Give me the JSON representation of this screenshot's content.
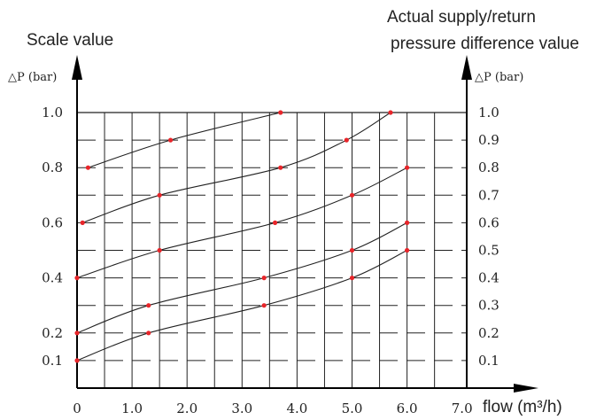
{
  "labels": {
    "left_title": "Scale value",
    "right_title_line1": "Actual supply/return",
    "right_title_line2": "pressure difference value",
    "left_axis_label": "△P (bar)",
    "right_axis_label": "△P (bar)",
    "x_axis_label": "flow (m³/h)"
  },
  "chart_data": {
    "type": "line",
    "x_ticks": [
      {
        "value": 0,
        "label": "0"
      },
      {
        "value": 1,
        "label": "1.0"
      },
      {
        "value": 2,
        "label": "2.0"
      },
      {
        "value": 3,
        "label": "3.0"
      },
      {
        "value": 4,
        "label": "4.0"
      },
      {
        "value": 5,
        "label": "5.0"
      },
      {
        "value": 6,
        "label": "6.0"
      },
      {
        "value": 7,
        "label": "7.0"
      }
    ],
    "left_ticks": [
      {
        "value": 0.1,
        "label": "0.1"
      },
      {
        "value": 0.2,
        "label": "0.2"
      },
      {
        "value": 0.4,
        "label": "0.4"
      },
      {
        "value": 0.6,
        "label": "0.6"
      },
      {
        "value": 0.8,
        "label": "0.8"
      },
      {
        "value": 1.0,
        "label": "1.0"
      }
    ],
    "right_ticks": [
      {
        "value": 0.1,
        "label": "0.1"
      },
      {
        "value": 0.2,
        "label": "0.2"
      },
      {
        "value": 0.3,
        "label": "0.3"
      },
      {
        "value": 0.4,
        "label": "0.4"
      },
      {
        "value": 0.5,
        "label": "0.5"
      },
      {
        "value": 0.6,
        "label": "0.6"
      },
      {
        "value": 0.7,
        "label": "0.7"
      },
      {
        "value": 0.8,
        "label": "0.8"
      },
      {
        "value": 0.9,
        "label": "0.9"
      },
      {
        "value": 1.0,
        "label": "1.0"
      }
    ],
    "xlim": [
      0,
      7
    ],
    "ylim": [
      0,
      1.0
    ],
    "grid": true,
    "series": [
      {
        "points": [
          [
            0.0,
            0.1
          ],
          [
            1.3,
            0.2
          ],
          [
            3.4,
            0.3
          ],
          [
            5.0,
            0.4
          ],
          [
            6.0,
            0.5
          ]
        ]
      },
      {
        "points": [
          [
            0.0,
            0.2
          ],
          [
            1.3,
            0.3
          ],
          [
            3.4,
            0.4
          ],
          [
            5.0,
            0.5
          ],
          [
            6.0,
            0.6
          ]
        ]
      },
      {
        "points": [
          [
            0.0,
            0.4
          ],
          [
            1.5,
            0.5
          ],
          [
            3.6,
            0.6
          ],
          [
            5.0,
            0.7
          ],
          [
            6.0,
            0.8
          ]
        ]
      },
      {
        "points": [
          [
            0.1,
            0.6
          ],
          [
            1.5,
            0.7
          ],
          [
            3.7,
            0.8
          ],
          [
            4.9,
            0.9
          ],
          [
            5.7,
            1.0
          ]
        ]
      },
      {
        "points": [
          [
            0.2,
            0.8
          ],
          [
            1.7,
            0.9
          ],
          [
            3.7,
            1.0
          ]
        ]
      }
    ],
    "line_color": "#222222",
    "marker_color": "#e8252a",
    "grid_color": "#222222"
  }
}
